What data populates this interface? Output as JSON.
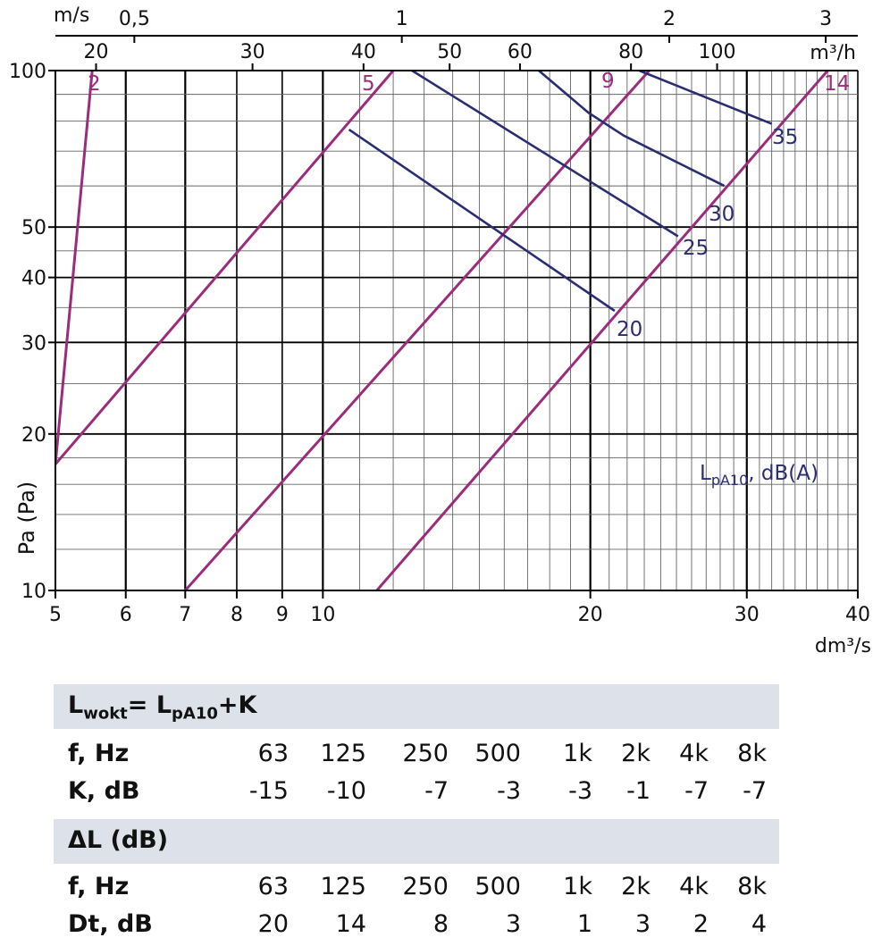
{
  "chart_data": {
    "type": "line",
    "ylabel": "Pa (Pa)",
    "xlabel": "dm³/s",
    "x_scale": "log",
    "y_scale": "log",
    "xlim": [
      5,
      40
    ],
    "ylim": [
      10,
      100
    ],
    "x_ticks": [
      5,
      6,
      7,
      8,
      9,
      10,
      20,
      30,
      40
    ],
    "x_tick_labels": [
      "5",
      "6",
      "7",
      "8",
      "9",
      "10",
      "20",
      "30",
      "40"
    ],
    "y_ticks": [
      10,
      20,
      30,
      40,
      50,
      100
    ],
    "y_tick_labels": [
      "10",
      "20",
      "30",
      "40",
      "50",
      "100"
    ],
    "top_axis_flow": {
      "label": "m³/h",
      "ticks": [
        20,
        30,
        40,
        50,
        60,
        80,
        100
      ],
      "tick_labels": [
        "20",
        "30",
        "40",
        "50",
        "60",
        "80",
        "100"
      ]
    },
    "top_axis_velocity": {
      "label": "m/s",
      "ticks": [
        0.5,
        1,
        2,
        3
      ],
      "tick_labels": [
        "0,5",
        "1",
        "2",
        "3"
      ]
    },
    "magenta_lines": [
      {
        "label": "2",
        "points": [
          [
            5,
            17.5
          ],
          [
            5.5,
            100
          ]
        ]
      },
      {
        "label": "5",
        "points": [
          [
            5,
            17.5
          ],
          [
            12.0,
            100
          ]
        ]
      },
      {
        "label": "9",
        "points": [
          [
            7,
            10
          ],
          [
            23.3,
            100
          ]
        ]
      },
      {
        "label": "14",
        "points": [
          [
            11.5,
            10
          ],
          [
            37.0,
            100
          ]
        ]
      }
    ],
    "blue_lines": [
      {
        "label": "20",
        "points": [
          [
            10.7,
            77
          ],
          [
            21.3,
            34.5
          ]
        ]
      },
      {
        "label": "25",
        "points": [
          [
            12.6,
            100
          ],
          [
            25.1,
            48
          ]
        ]
      },
      {
        "label": "30",
        "points": [
          [
            17.5,
            100
          ],
          [
            19.9,
            83
          ],
          [
            21.8,
            75
          ],
          [
            28.3,
            60
          ]
        ]
      },
      {
        "label": "35",
        "points": [
          [
            22.7,
            100
          ],
          [
            32.0,
            79
          ]
        ]
      }
    ],
    "annotation": "LpA10, dB(A)",
    "colors": {
      "magenta": "#9b2c7c",
      "blue": "#2a2d72",
      "grid_major": "#000000",
      "grid_minor": "#555555"
    }
  },
  "table": {
    "header1": {
      "main": "L",
      "sub": "wokt",
      "mid": "= L",
      "sub2": "pA10",
      "tail": "+K"
    },
    "f_label": "f, Hz",
    "frequencies": [
      "63",
      "125",
      "250",
      "500",
      "1k",
      "2k",
      "4k",
      "8k"
    ],
    "k_label": "K, dB",
    "k_values": [
      "-15",
      "-10",
      "-7",
      "-3",
      "-3",
      "-1",
      "-7",
      "-7"
    ],
    "header2": "ΔL (dB)",
    "f_label2": "f, Hz",
    "frequencies2": [
      "63",
      "125",
      "250",
      "500",
      "1k",
      "2k",
      "4k",
      "8k"
    ],
    "dt_label": "Dt, dB",
    "dt_values": [
      "20",
      "14",
      "8",
      "3",
      "1",
      "3",
      "2",
      "4"
    ]
  }
}
